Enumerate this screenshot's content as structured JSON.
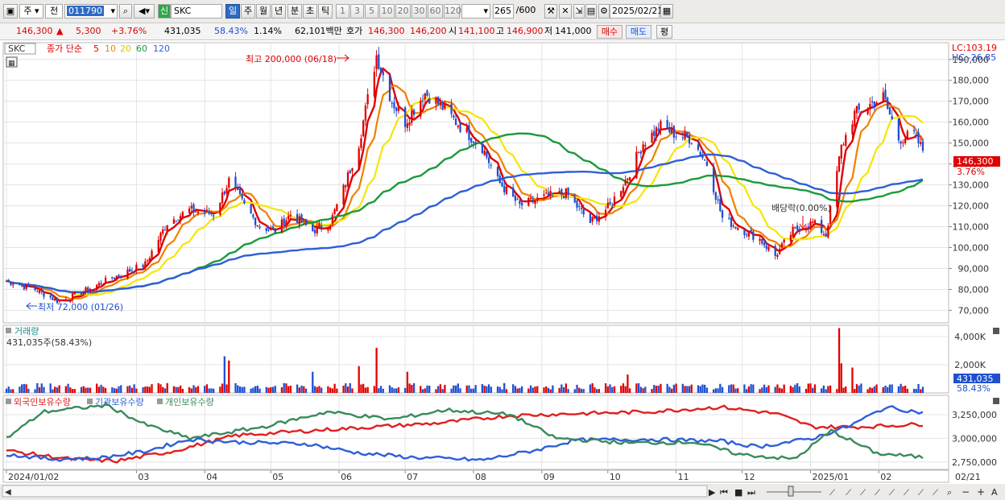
{
  "toolbar": {
    "mode_1": "주",
    "mode_2": "전",
    "stock_code": "011790",
    "stock_badge": "신",
    "stock_name": "SKC",
    "periods": [
      "일",
      "주",
      "월",
      "년",
      "분",
      "초",
      "틱"
    ],
    "active_period": "일",
    "intervals": [
      "1",
      "3",
      "5",
      "10",
      "20",
      "30",
      "60",
      "120"
    ],
    "range": "265",
    "range_total": "/600",
    "date": "2025/02/21"
  },
  "quote": {
    "price": "146,300",
    "change": "5,300",
    "change_pct": "+3.76%",
    "volume": "431,035",
    "vol_ratio": "58.43%",
    "turnover": "1.14%",
    "amount": "62,101백만",
    "hoga_label": "호가",
    "ask": "146,300",
    "bid": "146,200",
    "open_label": "시",
    "open": "141,100",
    "high_label": "고",
    "high": "146,900",
    "low_label": "저",
    "low": "141,000",
    "buy_button": "매수",
    "sell_button": "매도",
    "eval_button": "평"
  },
  "colors": {
    "up": "#e00000",
    "down": "#1f4fd0",
    "ma5": "#e00000",
    "ma10": "#f08000",
    "ma20": "#f5e600",
    "ma60": "#1a9a3a",
    "ma120": "#2e5fd8",
    "foreign": "#e02020",
    "institution": "#2e5fd8",
    "individual": "#3a8a5a"
  },
  "chart_data": [
    {
      "type": "candlestick",
      "title": "SKC",
      "legend": [
        "종가 단순",
        "5",
        "10",
        "20",
        "60",
        "120"
      ],
      "legend_placement": "top-left",
      "y_ticks": [
        "190,000",
        "180,000",
        "170,000",
        "160,000",
        "150,000",
        "140,000",
        "130,000",
        "120,000",
        "110,000",
        "100,000",
        "90,000",
        "80,000",
        "70,000"
      ],
      "ylim": [
        64000,
        198000
      ],
      "lc_label": "LC:103.19",
      "hc_label": "HC:-26.85",
      "current_label": "146,300",
      "current_pct_label": "3.76%",
      "current_value": 146300,
      "high_annotation": "최고 200,000 (06/18)",
      "low_annotation": "최저 72,000 (01/26)",
      "dividend_annotation": "배당락(0.00%)",
      "x_tick_labels": [
        "2024/01/02",
        "03",
        "04",
        "05",
        "06",
        "07",
        "08",
        "09",
        "10",
        "11",
        "12",
        "2025/01",
        "02",
        "02/21"
      ],
      "x_tick_months": [
        "2024-01",
        "2024-03",
        "2024-04",
        "2024-05",
        "2024-06",
        "2024-07",
        "2024-08",
        "2024-09",
        "2024-10",
        "2024-11",
        "2024-12",
        "2025-01",
        "2025-02"
      ],
      "key_prices": {
        "dates": [
          "2024-01-02",
          "2024-01-15",
          "2024-01-26",
          "2024-02-08",
          "2024-02-20",
          "2024-03-05",
          "2024-03-15",
          "2024-03-25",
          "2024-04-05",
          "2024-04-12",
          "2024-04-19",
          "2024-04-26",
          "2024-05-03",
          "2024-05-10",
          "2024-05-20",
          "2024-05-28",
          "2024-06-03",
          "2024-06-10",
          "2024-06-18",
          "2024-06-25",
          "2024-07-01",
          "2024-07-10",
          "2024-07-17",
          "2024-07-26",
          "2024-08-05",
          "2024-08-12",
          "2024-08-22",
          "2024-09-02",
          "2024-09-12",
          "2024-09-23",
          "2024-10-02",
          "2024-10-10",
          "2024-10-17",
          "2024-10-25",
          "2024-11-01",
          "2024-11-08",
          "2024-11-15",
          "2024-11-22",
          "2024-12-02",
          "2024-12-09",
          "2024-12-16",
          "2024-12-24",
          "2025-01-02",
          "2025-01-08",
          "2025-01-15",
          "2025-01-21",
          "2025-02-03",
          "2025-02-10",
          "2025-02-17",
          "2025-02-21"
        ],
        "close": [
          84000,
          80000,
          74000,
          80000,
          86000,
          92000,
          112000,
          118000,
          116000,
          132000,
          120000,
          110000,
          108000,
          116000,
          108000,
          112000,
          128000,
          150000,
          192000,
          170000,
          160000,
          174000,
          168000,
          158000,
          148000,
          132000,
          120000,
          124000,
          126000,
          112000,
          120000,
          134000,
          150000,
          158000,
          154000,
          152000,
          140000,
          114000,
          108000,
          104000,
          96000,
          108000,
          112000,
          106000,
          148000,
          164000,
          172000,
          152000,
          154000,
          146300
        ]
      }
    },
    {
      "type": "bar",
      "title": "거래량",
      "value_label": "431,035주(58.43%)",
      "y_ticks": [
        "4,000K",
        "2,000K"
      ],
      "ylim": [
        0,
        4800
      ],
      "current_label": "431,035",
      "current_pct_label": "58.43%",
      "current_value": 431,
      "spikes": {
        "dates": [
          "2024-04-10",
          "2024-04-12",
          "2024-06-10",
          "2024-06-18",
          "2024-05-20",
          "2024-07-02",
          "2025-01-14",
          "2025-01-15",
          "2025-01-20",
          "2024-10-10"
        ],
        "values": [
          2600,
          2300,
          1900,
          3200,
          1500,
          1500,
          4600,
          2100,
          1800,
          1300
        ]
      }
    },
    {
      "type": "line",
      "legend": [
        "외국인보유수량",
        "기관보유수량",
        "개인보유수량"
      ],
      "legend_placement": "top-left",
      "y_ticks": [
        "3,250,000",
        "3,000,000",
        "2,750,000"
      ],
      "ylim": [
        2680000,
        3420000
      ],
      "series": [
        {
          "name": "외국인보유수량",
          "points": [
            [
              0,
              2870000
            ],
            [
              0.07,
              2780000
            ],
            [
              0.12,
              2760000
            ],
            [
              0.18,
              2860000
            ],
            [
              0.25,
              3030000
            ],
            [
              0.33,
              3080000
            ],
            [
              0.4,
              3120000
            ],
            [
              0.47,
              3160000
            ],
            [
              0.55,
              3240000
            ],
            [
              0.62,
              3260000
            ],
            [
              0.7,
              3280000
            ],
            [
              0.78,
              3330000
            ],
            [
              0.84,
              3260000
            ],
            [
              0.88,
              3120000
            ],
            [
              0.93,
              3120000
            ],
            [
              1,
              3150000
            ]
          ]
        },
        {
          "name": "기관보유수량",
          "points": [
            [
              0,
              2830000
            ],
            [
              0.05,
              2780000
            ],
            [
              0.1,
              2790000
            ],
            [
              0.15,
              2860000
            ],
            [
              0.2,
              2990000
            ],
            [
              0.25,
              2960000
            ],
            [
              0.33,
              2940000
            ],
            [
              0.38,
              2850000
            ],
            [
              0.44,
              2800000
            ],
            [
              0.52,
              2770000
            ],
            [
              0.58,
              2880000
            ],
            [
              0.62,
              2980000
            ],
            [
              0.7,
              2990000
            ],
            [
              0.78,
              2970000
            ],
            [
              0.82,
              2910000
            ],
            [
              0.88,
              3000000
            ],
            [
              0.92,
              3130000
            ],
            [
              0.96,
              3330000
            ],
            [
              1,
              3270000
            ]
          ]
        },
        {
          "name": "개인보유수량",
          "points": [
            [
              0,
              3000000
            ],
            [
              0.04,
              3280000
            ],
            [
              0.08,
              3320000
            ],
            [
              0.11,
              3350000
            ],
            [
              0.15,
              3150000
            ],
            [
              0.2,
              3000000
            ],
            [
              0.28,
              3120000
            ],
            [
              0.35,
              3280000
            ],
            [
              0.42,
              3200000
            ],
            [
              0.48,
              3300000
            ],
            [
              0.55,
              3250000
            ],
            [
              0.6,
              3000000
            ],
            [
              0.68,
              2950000
            ],
            [
              0.75,
              2960000
            ],
            [
              0.8,
              2830000
            ],
            [
              0.86,
              2780000
            ],
            [
              0.9,
              3080000
            ],
            [
              0.95,
              2840000
            ],
            [
              1,
              2800000
            ]
          ]
        }
      ]
    }
  ],
  "bottom_bar": {
    "zoom_out": "−",
    "zoom_in": "+",
    "auto": "A"
  }
}
